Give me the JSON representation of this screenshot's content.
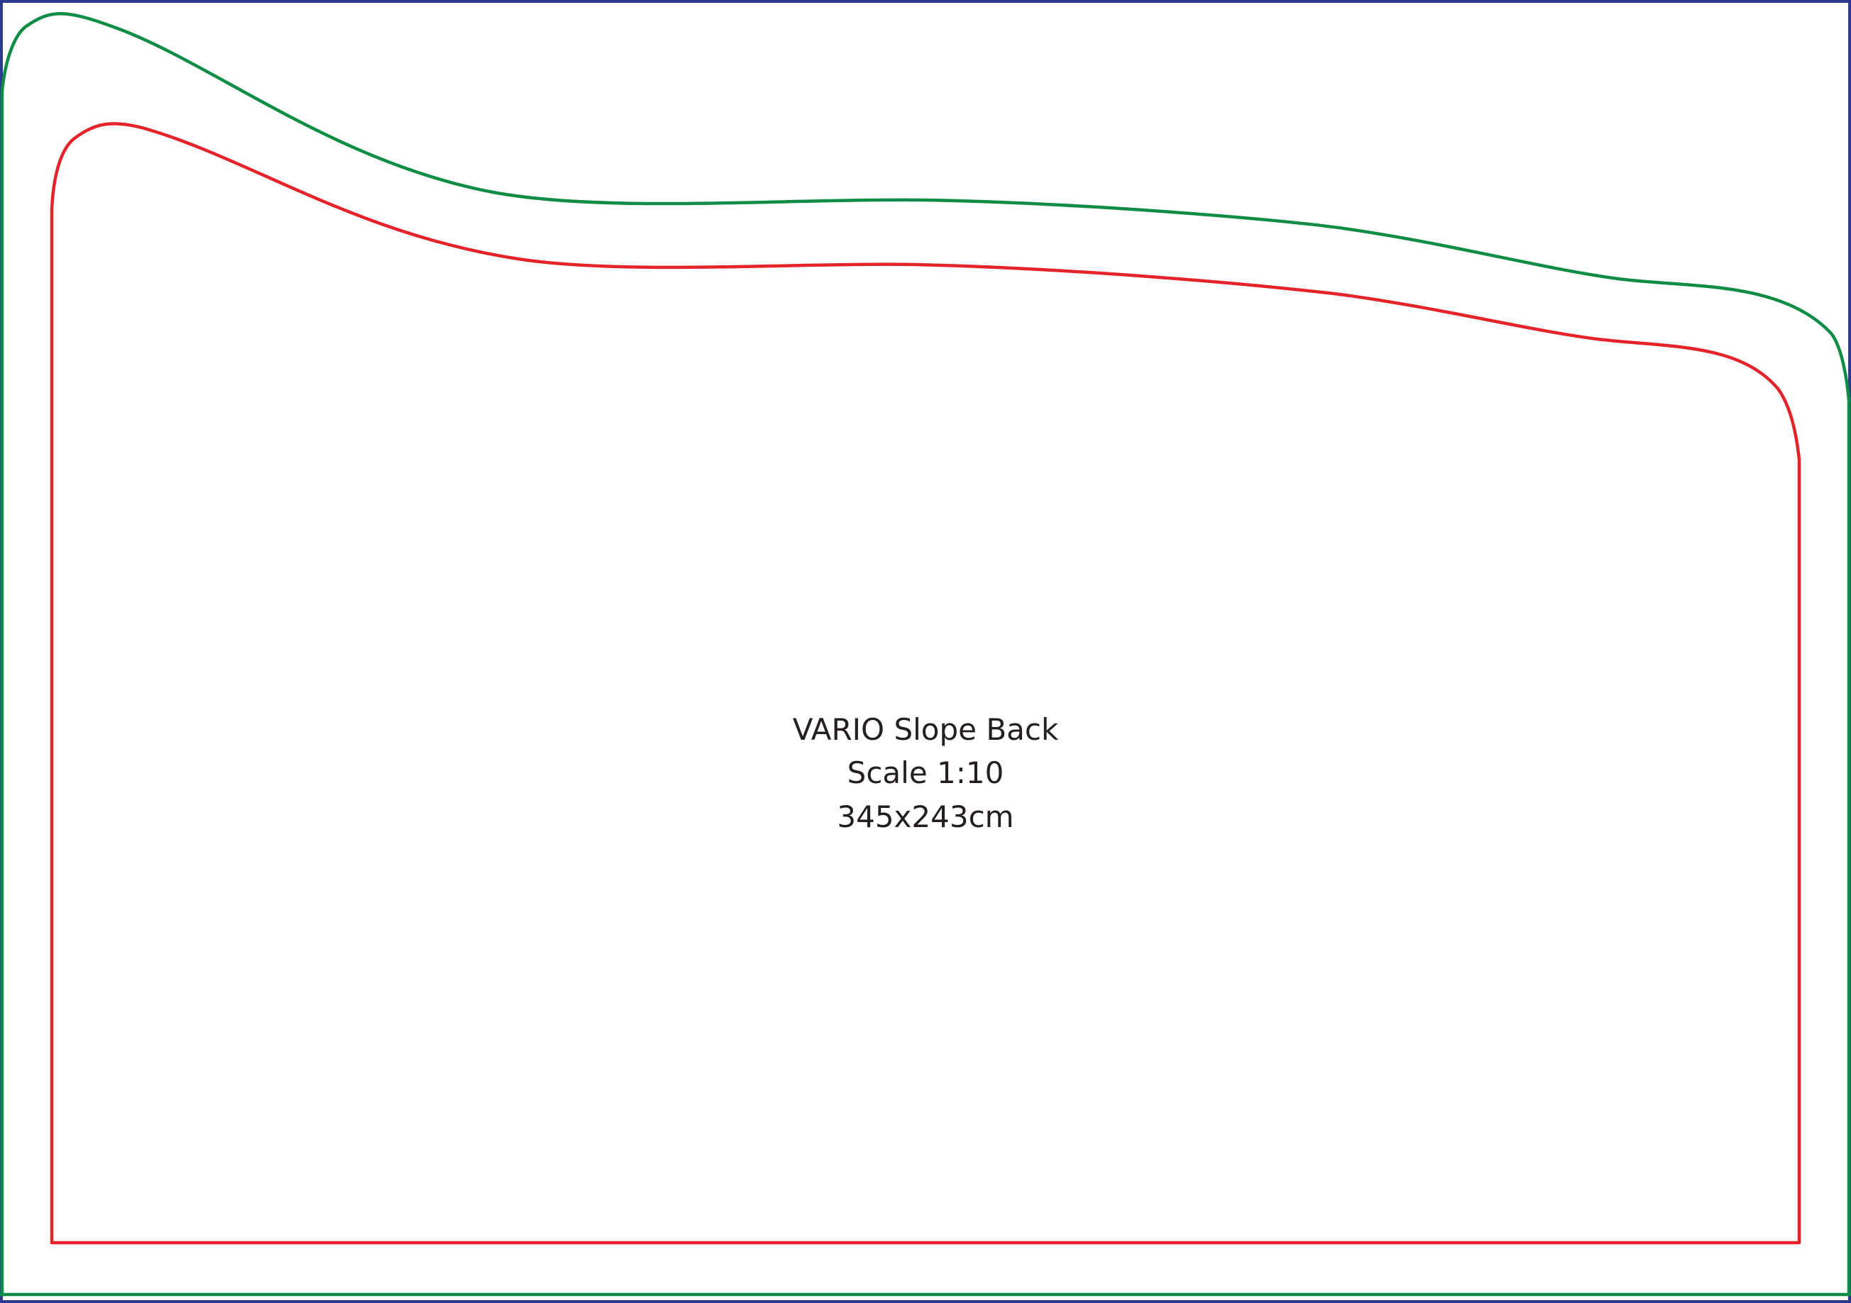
{
  "colors": {
    "border": "#2b3990",
    "outer_line": "#0f8c45",
    "inner_line": "#e5232a",
    "text": "#231f20",
    "background": "#ffffff"
  },
  "caption": {
    "line1": "VARIO Slope Back",
    "line2": "Scale 1:10",
    "line3": "345x243cm"
  }
}
